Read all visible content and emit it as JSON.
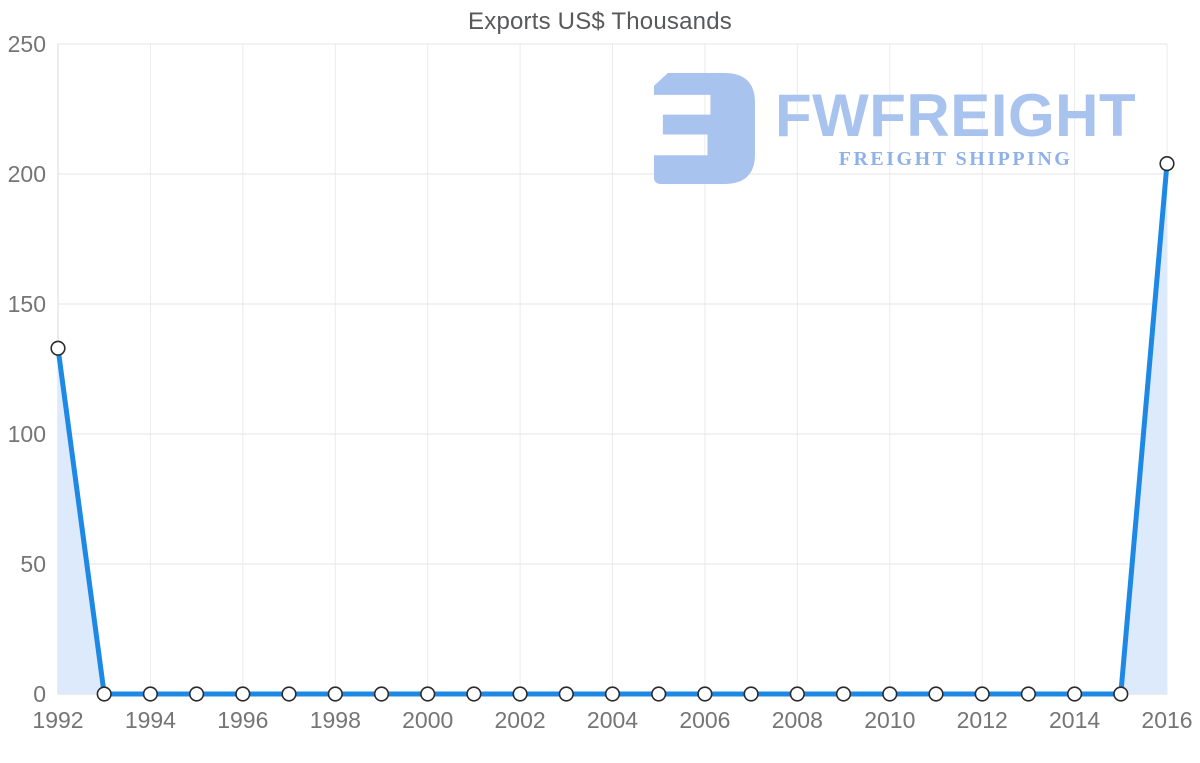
{
  "title": "Exports US$ Thousands",
  "watermark": {
    "brand": "FWFREIGHT",
    "tagline": "FREIGHT SHIPPING",
    "brand_color": "#a9c3ef",
    "tagline_color": "#8fb1ea",
    "mark_color": "#a9c3ef"
  },
  "chart_data": {
    "type": "area",
    "title": "Exports US$ Thousands",
    "x": [
      1992,
      1993,
      1994,
      1995,
      1996,
      1997,
      1998,
      1999,
      2000,
      2001,
      2002,
      2003,
      2004,
      2005,
      2006,
      2007,
      2008,
      2009,
      2010,
      2011,
      2012,
      2013,
      2014,
      2015,
      2016
    ],
    "series": [
      {
        "name": "Exports US$ Thousands",
        "values": [
          133,
          0,
          0,
          0,
          0,
          0,
          0,
          0,
          0,
          0,
          0,
          0,
          0,
          0,
          0,
          0,
          0,
          0,
          0,
          0,
          0,
          0,
          0,
          0,
          204
        ]
      }
    ],
    "ylim": [
      0,
      250
    ],
    "y_ticks": [
      0,
      50,
      100,
      150,
      200,
      250
    ],
    "x_tick_labels": [
      1992,
      1994,
      1996,
      1998,
      2000,
      2002,
      2004,
      2006,
      2008,
      2010,
      2012,
      2014,
      2016
    ],
    "grid": true,
    "legend": "none",
    "line_color": "#1e88e5",
    "fill_color": "#dceafb",
    "marker_fill": "#ffffff",
    "marker_stroke": "#2b2b2b",
    "grid_color_h": "#e6e6e6",
    "grid_color_v": "#ebebeb",
    "axis_color": "#d8d8d8",
    "tick_color": "#757575",
    "title_color": "#58595b"
  }
}
